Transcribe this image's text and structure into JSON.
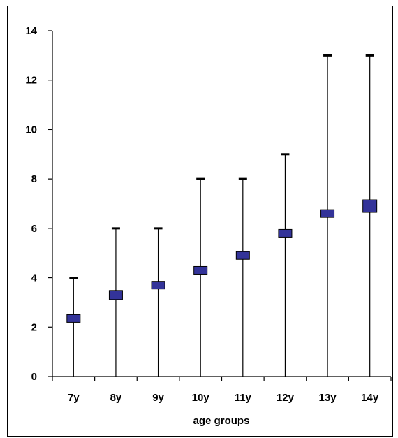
{
  "chart_data": {
    "type": "range-marker",
    "title": "",
    "xlabel": "age groups",
    "ylabel": "",
    "ylim": [
      0,
      14
    ],
    "yticks": [
      0,
      2,
      4,
      6,
      8,
      10,
      12,
      14
    ],
    "categories": [
      "7y",
      "8y",
      "9y",
      "10y",
      "11y",
      "12y",
      "13y",
      "14y"
    ],
    "series": [
      {
        "name": "",
        "stat": "mean",
        "values": [
          2.35,
          3.3,
          3.7,
          4.3,
          4.9,
          5.8,
          6.6,
          6.9
        ]
      },
      {
        "name": "",
        "stat": "max",
        "values": [
          4,
          6,
          6,
          8,
          8,
          9,
          13,
          13
        ]
      },
      {
        "name": "",
        "stat": "min",
        "values": [
          0,
          0,
          0,
          0,
          0,
          0,
          0,
          0
        ]
      }
    ],
    "marker_color": "#333399",
    "grid": false,
    "legend": "none"
  }
}
